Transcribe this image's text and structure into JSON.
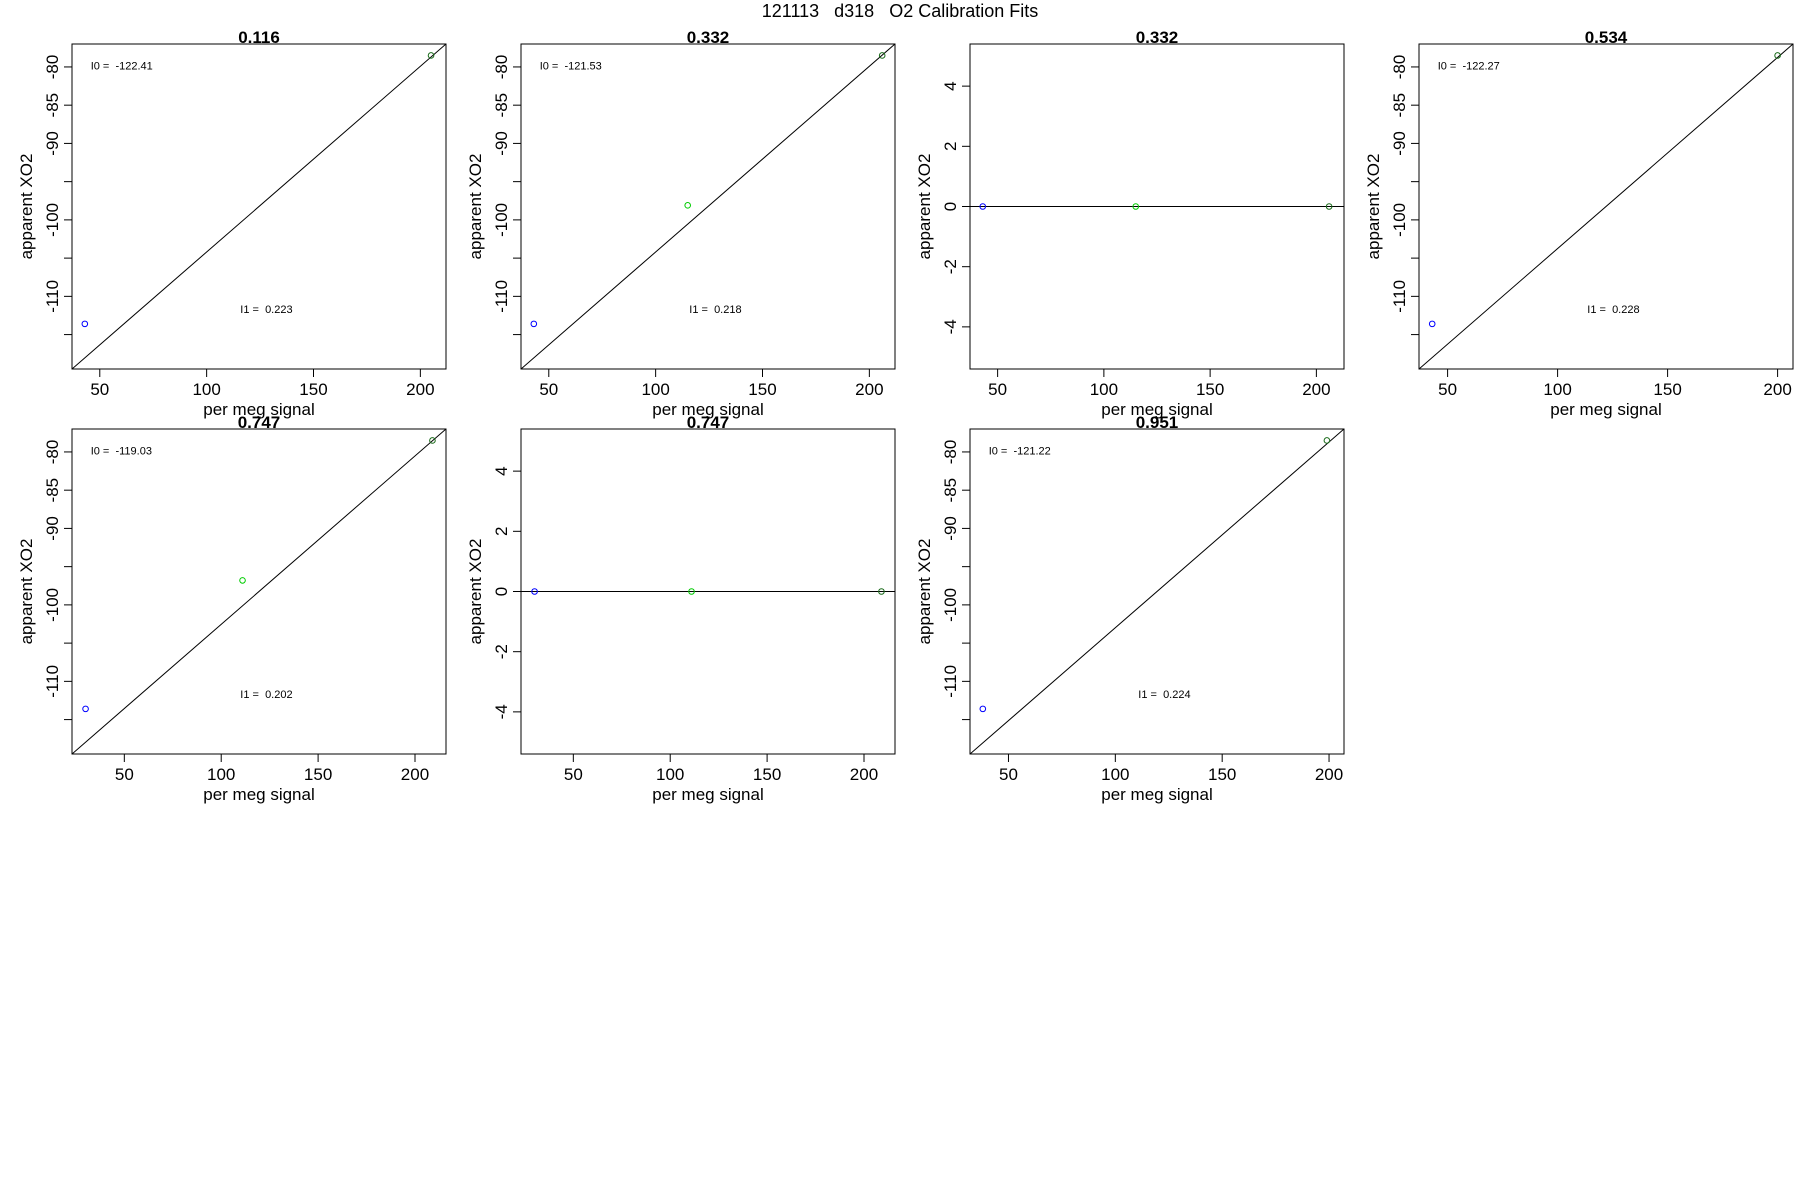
{
  "page": {
    "title": "121113   d318   O2 Calibration Fits"
  },
  "chart_data": [
    {
      "type": "scatter",
      "title": "0.116",
      "xlabel": "per meg signal",
      "ylabel": "apparent XO2",
      "xlim": [
        37,
        212
      ],
      "ylim": [
        -119.5,
        -77
      ],
      "xticks": [
        50,
        100,
        150,
        200
      ],
      "yticks": [
        -80,
        -85,
        -90,
        -95,
        -100,
        -105,
        -110,
        -115
      ],
      "ytick_labels": [
        "-80",
        "-85",
        "-90",
        "",
        "-100",
        "",
        "-110",
        ""
      ],
      "annotations": [
        {
          "text": "I0 =  -122.41"
        },
        {
          "text": "I1 =  0.223"
        }
      ],
      "fit_line": {
        "x": [
          37,
          212
        ],
        "y": [
          -119.5,
          -77
        ]
      },
      "points": [
        {
          "x": 43,
          "y": -113.6,
          "color": "#0000ff"
        },
        {
          "x": 205,
          "y": -78.5,
          "color": "#1a6b1a"
        }
      ]
    },
    {
      "type": "scatter",
      "title": "0.332",
      "xlabel": "per meg signal",
      "ylabel": "apparent XO2",
      "xlim": [
        37,
        212
      ],
      "ylim": [
        -119.5,
        -77
      ],
      "xticks": [
        50,
        100,
        150,
        200
      ],
      "yticks": [
        -80,
        -85,
        -90,
        -95,
        -100,
        -105,
        -110,
        -115
      ],
      "ytick_labels": [
        "-80",
        "-85",
        "-90",
        "",
        "-100",
        "",
        "-110",
        ""
      ],
      "annotations": [
        {
          "text": "I0 =  -121.53"
        },
        {
          "text": "I1 =  0.218"
        }
      ],
      "fit_line": {
        "x": [
          37,
          212
        ],
        "y": [
          -119.5,
          -77
        ]
      },
      "points": [
        {
          "x": 43,
          "y": -113.6,
          "color": "#0000ff"
        },
        {
          "x": 115,
          "y": -98.1,
          "color": "#00cc00"
        },
        {
          "x": 206,
          "y": -78.5,
          "color": "#1a6b1a"
        }
      ]
    },
    {
      "type": "scatter",
      "title": "0.332",
      "xlabel": "per meg signal",
      "ylabel": "apparent XO2",
      "xlim": [
        37,
        213
      ],
      "ylim": [
        -5.4,
        5.4
      ],
      "xticks": [
        50,
        100,
        150,
        200
      ],
      "yticks": [
        4,
        2,
        0,
        -2,
        -4
      ],
      "ytick_labels": [
        "4",
        "2",
        "0",
        "-2",
        "-4"
      ],
      "annotations": [],
      "fit_line": {
        "x": [
          37,
          213
        ],
        "y": [
          0,
          0
        ]
      },
      "points": [
        {
          "x": 43,
          "y": 0,
          "color": "#0000ff"
        },
        {
          "x": 115,
          "y": 0,
          "color": "#00cc00"
        },
        {
          "x": 206,
          "y": 0,
          "color": "#1a6b1a"
        }
      ]
    },
    {
      "type": "scatter",
      "title": "0.534",
      "xlabel": "per meg signal",
      "ylabel": "apparent XO2",
      "xlim": [
        37,
        207
      ],
      "ylim": [
        -119.5,
        -77
      ],
      "xticks": [
        50,
        100,
        150,
        200
      ],
      "yticks": [
        -80,
        -85,
        -90,
        -95,
        -100,
        -105,
        -110,
        -115
      ],
      "ytick_labels": [
        "-80",
        "-85",
        "-90",
        "",
        "-100",
        "",
        "-110",
        ""
      ],
      "annotations": [
        {
          "text": "I0 =  -122.27"
        },
        {
          "text": "I1 =  0.228"
        }
      ],
      "fit_line": {
        "x": [
          37,
          207
        ],
        "y": [
          -119.5,
          -77
        ]
      },
      "points": [
        {
          "x": 43,
          "y": -113.6,
          "color": "#0000ff"
        },
        {
          "x": 200,
          "y": -78.5,
          "color": "#1a6b1a"
        }
      ]
    },
    {
      "type": "scatter",
      "title": "0.747",
      "xlabel": "per meg signal",
      "ylabel": "apparent XO2",
      "xlim": [
        23,
        216
      ],
      "ylim": [
        -119.5,
        -77
      ],
      "xticks": [
        50,
        100,
        150,
        200
      ],
      "yticks": [
        -80,
        -85,
        -90,
        -95,
        -100,
        -105,
        -110,
        -115
      ],
      "ytick_labels": [
        "-80",
        "-85",
        "-90",
        "",
        "-100",
        "",
        "-110",
        ""
      ],
      "annotations": [
        {
          "text": "I0 =  -119.03"
        },
        {
          "text": "I1 =  0.202"
        }
      ],
      "fit_line": {
        "x": [
          23,
          216
        ],
        "y": [
          -119.5,
          -77
        ]
      },
      "points": [
        {
          "x": 30,
          "y": -113.6,
          "color": "#0000ff"
        },
        {
          "x": 111,
          "y": -96.8,
          "color": "#00cc00"
        },
        {
          "x": 209,
          "y": -78.5,
          "color": "#1a6b1a"
        }
      ]
    },
    {
      "type": "scatter",
      "title": "0.747",
      "xlabel": "per meg signal",
      "ylabel": "apparent XO2",
      "xlim": [
        23,
        216
      ],
      "ylim": [
        -5.4,
        5.4
      ],
      "xticks": [
        50,
        100,
        150,
        200
      ],
      "yticks": [
        4,
        2,
        0,
        -2,
        -4
      ],
      "ytick_labels": [
        "4",
        "2",
        "0",
        "-2",
        "-4"
      ],
      "annotations": [],
      "fit_line": {
        "x": [
          23,
          216
        ],
        "y": [
          0,
          0
        ]
      },
      "points": [
        {
          "x": 30,
          "y": 0,
          "color": "#0000ff"
        },
        {
          "x": 111,
          "y": 0,
          "color": "#00cc00"
        },
        {
          "x": 209,
          "y": 0,
          "color": "#1a6b1a"
        }
      ]
    },
    {
      "type": "scatter",
      "title": "0.951",
      "xlabel": "per meg signal",
      "ylabel": "apparent XO2",
      "xlim": [
        32,
        207
      ],
      "ylim": [
        -119.5,
        -77
      ],
      "xticks": [
        50,
        100,
        150,
        200
      ],
      "yticks": [
        -80,
        -85,
        -90,
        -95,
        -100,
        -105,
        -110,
        -115
      ],
      "ytick_labels": [
        "-80",
        "-85",
        "-90",
        "",
        "-100",
        "",
        "-110",
        ""
      ],
      "annotations": [
        {
          "text": "I0 =  -121.22"
        },
        {
          "text": "I1 =  0.224"
        }
      ],
      "fit_line": {
        "x": [
          32,
          207
        ],
        "y": [
          -119.5,
          -77
        ]
      },
      "points": [
        {
          "x": 38,
          "y": -113.6,
          "color": "#0000ff"
        },
        {
          "x": 199,
          "y": -78.5,
          "color": "#1a6b1a"
        }
      ]
    }
  ]
}
